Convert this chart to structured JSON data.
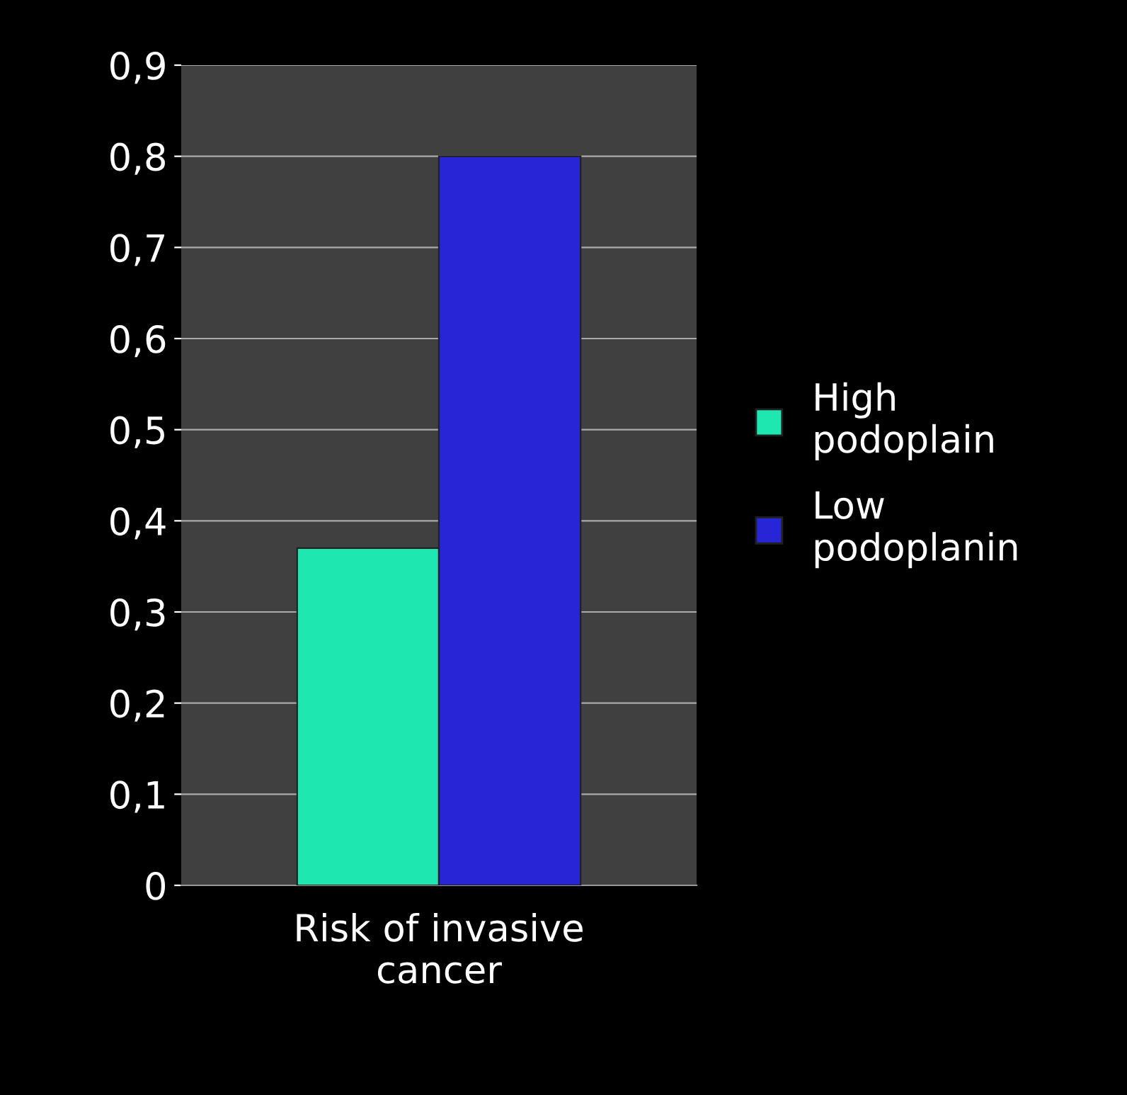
{
  "chart_data": {
    "type": "bar",
    "categories": [
      "Risk of invasive\ncancer"
    ],
    "series": [
      {
        "name": "High\npodoplain",
        "color": "#1ee8b0",
        "values": [
          0.37
        ]
      },
      {
        "name": "Low\npodoplanin",
        "color": "#2626d6",
        "values": [
          0.8
        ]
      }
    ],
    "ylim": [
      0,
      0.9
    ],
    "yticks": [
      0,
      {
        "value": 0.1,
        "label": "0,1"
      },
      {
        "value": 0.2,
        "label": "0,2"
      },
      {
        "value": 0.3,
        "label": "0,3"
      },
      {
        "value": 0.4,
        "label": "0,4"
      },
      {
        "value": 0.5,
        "label": "0,5"
      },
      {
        "value": 0.6,
        "label": "0,6"
      },
      {
        "value": 0.7,
        "label": "0,7"
      },
      {
        "value": 0.8,
        "label": "0,8"
      },
      {
        "value": 0.9,
        "label": "0,9"
      }
    ],
    "grid": "y",
    "legend": "right"
  }
}
